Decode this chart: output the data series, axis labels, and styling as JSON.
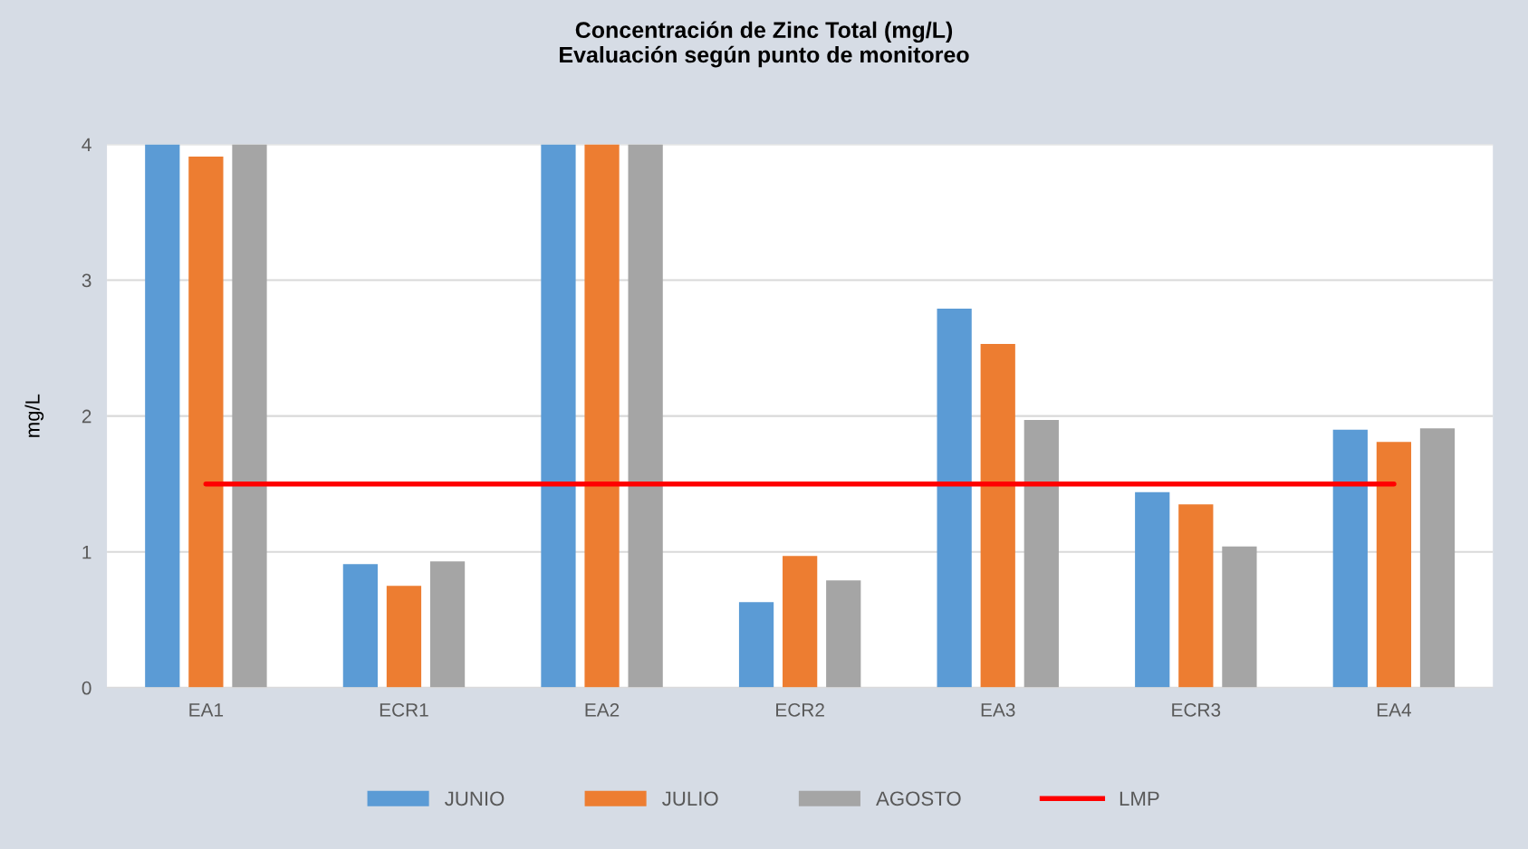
{
  "chart_data": {
    "type": "bar",
    "title": "Concentración de Zinc Total (mg/L)\nEvaluación según punto de monitoreo",
    "ylabel": "mg/L",
    "categories": [
      "EA1",
      "ECR1",
      "EA2",
      "ECR2",
      "EA3",
      "ECR3",
      "EA4"
    ],
    "series": [
      {
        "name": "JUNIO",
        "color": "#5b9bd5",
        "values": [
          4,
          0.91,
          4,
          0.63,
          2.79,
          1.44,
          1.9
        ]
      },
      {
        "name": "JULIO",
        "color": "#ed7d31",
        "values": [
          3.91,
          0.75,
          4,
          0.97,
          2.53,
          1.35,
          1.81
        ]
      },
      {
        "name": "AGOSTO",
        "color": "#a5a5a5",
        "values": [
          4,
          0.93,
          4,
          0.79,
          1.97,
          1.04,
          1.91
        ]
      },
      {
        "name": "LMP",
        "color": "#ff0000",
        "type": "line",
        "values": [
          1.5,
          1.5,
          1.5,
          1.5,
          1.5,
          1.5,
          1.5
        ]
      }
    ],
    "ylim": [
      0,
      4
    ],
    "yticks": [
      0,
      1,
      2,
      3,
      4
    ],
    "grid": "y",
    "legend": "bottom"
  }
}
